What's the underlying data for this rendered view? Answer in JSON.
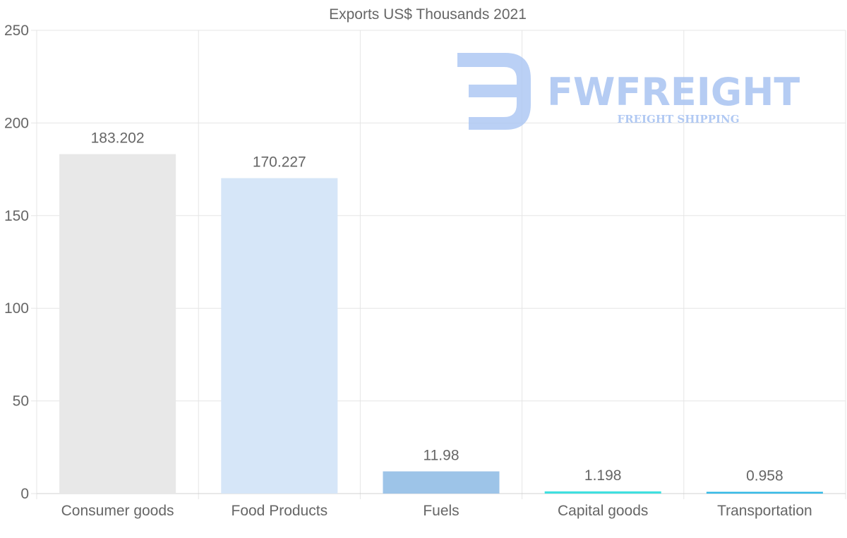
{
  "chart_data": {
    "type": "bar",
    "title": "Exports US$ Thousands 2021",
    "categories": [
      "Consumer goods",
      "Food Products",
      "Fuels",
      "Capital goods",
      "Transportation"
    ],
    "values": [
      183.202,
      170.227,
      11.98,
      1.198,
      0.958
    ],
    "value_labels": [
      "183.202",
      "170.227",
      "11.98",
      "1.198",
      "0.958"
    ],
    "colors": [
      "#e8e8e8",
      "#d6e6f8",
      "#9dc4e8",
      "#40e0e0",
      "#35b9e6"
    ],
    "ylim": [
      0,
      250
    ],
    "yticks": [
      0,
      50,
      100,
      150,
      200,
      250
    ],
    "xlabel": "",
    "ylabel": "",
    "grid": true
  },
  "watermark": {
    "brand": "FWFREIGHT",
    "tagline": "FREIGHT SHIPPING"
  }
}
